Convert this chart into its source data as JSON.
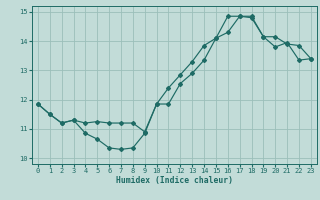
{
  "xlabel": "Humidex (Indice chaleur)",
  "xlim": [
    -0.5,
    23.5
  ],
  "ylim": [
    9.8,
    15.2
  ],
  "yticks": [
    10,
    11,
    12,
    13,
    14,
    15
  ],
  "xticks": [
    0,
    1,
    2,
    3,
    4,
    5,
    6,
    7,
    8,
    9,
    10,
    11,
    12,
    13,
    14,
    15,
    16,
    17,
    18,
    19,
    20,
    21,
    22,
    23
  ],
  "bg_color": "#c2dcd8",
  "grid_color": "#9bbfba",
  "line_color": "#1e6b65",
  "line1_x": [
    0,
    1,
    2,
    3,
    4,
    5,
    6,
    7,
    8,
    9,
    10,
    11,
    12,
    13,
    14,
    15,
    16,
    17,
    18,
    19,
    20,
    21,
    22,
    23
  ],
  "line1_y": [
    11.85,
    11.5,
    11.2,
    11.3,
    10.85,
    10.65,
    10.35,
    10.3,
    10.35,
    10.85,
    11.85,
    11.85,
    12.55,
    12.9,
    13.35,
    14.1,
    14.3,
    14.85,
    14.8,
    14.15,
    13.8,
    13.95,
    13.35,
    13.4
  ],
  "line2_x": [
    0,
    1,
    2,
    3,
    4,
    5,
    6,
    7,
    8,
    9,
    10,
    11,
    12,
    13,
    14,
    15,
    16,
    17,
    18,
    19,
    20,
    21,
    22,
    23
  ],
  "line2_y": [
    11.85,
    11.5,
    11.2,
    11.3,
    11.2,
    11.25,
    11.2,
    11.2,
    11.2,
    10.9,
    11.85,
    12.4,
    12.85,
    13.3,
    13.85,
    14.1,
    14.85,
    14.85,
    14.85,
    14.15,
    14.15,
    13.9,
    13.85,
    13.4
  ]
}
